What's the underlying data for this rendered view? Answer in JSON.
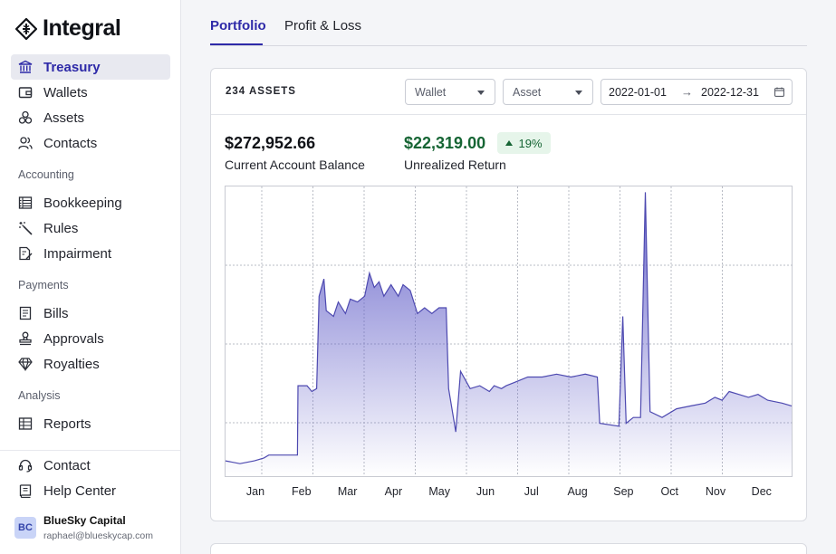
{
  "app": {
    "name": "Integral"
  },
  "sidebar": {
    "top_items": [
      {
        "label": "Treasury",
        "icon": "bank-icon",
        "active": true
      },
      {
        "label": "Wallets",
        "icon": "wallet-icon"
      },
      {
        "label": "Assets",
        "icon": "coins-icon"
      },
      {
        "label": "Contacts",
        "icon": "contacts-icon"
      }
    ],
    "sections": {
      "accounting": {
        "title": "Accounting",
        "items": [
          {
            "label": "Bookkeeping",
            "icon": "ledger-icon"
          },
          {
            "label": "Rules",
            "icon": "wand-icon"
          },
          {
            "label": "Impairment",
            "icon": "document-edit-icon"
          }
        ]
      },
      "payments": {
        "title": "Payments",
        "items": [
          {
            "label": "Bills",
            "icon": "bill-icon"
          },
          {
            "label": "Approvals",
            "icon": "stamp-icon"
          },
          {
            "label": "Royalties",
            "icon": "diamond-icon"
          }
        ]
      },
      "analysis": {
        "title": "Analysis",
        "items": [
          {
            "label": "Reports",
            "icon": "table-icon"
          }
        ]
      }
    },
    "bottom_items": [
      {
        "label": "Contact",
        "icon": "headset-icon"
      },
      {
        "label": "Help Center",
        "icon": "book-icon"
      }
    ],
    "user": {
      "initials": "BC",
      "name": "BlueSky Capital",
      "email": "raphael@blueskycap.com"
    }
  },
  "tabs": [
    {
      "label": "Portfolio",
      "active": true
    },
    {
      "label": "Profit & Loss",
      "active": false
    }
  ],
  "card": {
    "assets_count": "234 ASSETS",
    "wallet_select": "Wallet",
    "asset_select": "Asset",
    "date_from": "2022-01-01",
    "date_to": "2022-12-31",
    "balance": {
      "value": "$272,952.66",
      "label": "Current Account Balance"
    },
    "return": {
      "value": "$22,319.00",
      "label": "Unrealized Return",
      "change": "19%",
      "direction": "up"
    }
  },
  "colors": {
    "accent": "#2e2aa8",
    "chart_line": "#4d49b0",
    "chart_fill_top": "#6d69cf",
    "positive": "#166534"
  },
  "chart_data": {
    "type": "area",
    "x_ticks": [
      "Jan",
      "Feb",
      "Mar",
      "Apr",
      "May",
      "Jun",
      "Jul",
      "Aug",
      "Sep",
      "Oct",
      "Nov",
      "Dec"
    ],
    "grid": true,
    "legend": "none",
    "x_unit": "month_index",
    "points": [
      [
        0.0,
        0.05
      ],
      [
        0.3,
        0.04
      ],
      [
        0.6,
        0.05
      ],
      [
        0.8,
        0.06
      ],
      [
        0.9,
        0.07
      ],
      [
        1.2,
        0.07
      ],
      [
        1.5,
        0.07
      ],
      [
        1.51,
        0.31
      ],
      [
        1.7,
        0.31
      ],
      [
        1.8,
        0.29
      ],
      [
        1.9,
        0.3
      ],
      [
        1.95,
        0.62
      ],
      [
        2.05,
        0.68
      ],
      [
        2.1,
        0.57
      ],
      [
        2.25,
        0.55
      ],
      [
        2.35,
        0.6
      ],
      [
        2.5,
        0.56
      ],
      [
        2.6,
        0.61
      ],
      [
        2.75,
        0.6
      ],
      [
        2.9,
        0.62
      ],
      [
        3.0,
        0.7
      ],
      [
        3.1,
        0.65
      ],
      [
        3.2,
        0.67
      ],
      [
        3.3,
        0.62
      ],
      [
        3.45,
        0.66
      ],
      [
        3.6,
        0.62
      ],
      [
        3.7,
        0.66
      ],
      [
        3.85,
        0.64
      ],
      [
        4.0,
        0.56
      ],
      [
        4.15,
        0.58
      ],
      [
        4.3,
        0.56
      ],
      [
        4.45,
        0.58
      ],
      [
        4.6,
        0.58
      ],
      [
        4.65,
        0.3
      ],
      [
        4.8,
        0.15
      ],
      [
        4.9,
        0.36
      ],
      [
        5.1,
        0.3
      ],
      [
        5.3,
        0.31
      ],
      [
        5.5,
        0.29
      ],
      [
        5.6,
        0.31
      ],
      [
        5.75,
        0.3
      ],
      [
        5.85,
        0.31
      ],
      [
        6.0,
        0.32
      ],
      [
        6.3,
        0.34
      ],
      [
        6.6,
        0.34
      ],
      [
        6.9,
        0.35
      ],
      [
        7.2,
        0.34
      ],
      [
        7.5,
        0.35
      ],
      [
        7.75,
        0.34
      ],
      [
        7.8,
        0.18
      ],
      [
        8.2,
        0.17
      ],
      [
        8.28,
        0.55
      ],
      [
        8.35,
        0.18
      ],
      [
        8.5,
        0.2
      ],
      [
        8.65,
        0.2
      ],
      [
        8.75,
        0.98
      ],
      [
        8.85,
        0.22
      ],
      [
        9.1,
        0.2
      ],
      [
        9.4,
        0.23
      ],
      [
        9.7,
        0.24
      ],
      [
        10.0,
        0.25
      ],
      [
        10.2,
        0.27
      ],
      [
        10.35,
        0.26
      ],
      [
        10.5,
        0.29
      ],
      [
        10.7,
        0.28
      ],
      [
        10.9,
        0.27
      ],
      [
        11.1,
        0.28
      ],
      [
        11.3,
        0.26
      ],
      [
        11.6,
        0.25
      ],
      [
        11.8,
        0.24
      ]
    ],
    "y_gridlines": 3
  }
}
